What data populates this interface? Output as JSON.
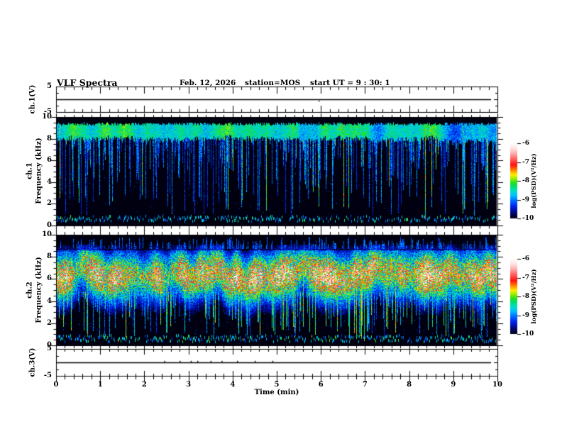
{
  "header": {
    "title": "VLF Spectra",
    "date": "Feb. 12, 2026",
    "station": "station=MOS",
    "start_ut": "start UT =  9 : 30: 1"
  },
  "x_axis": {
    "label": "Time (min)",
    "ticks": [
      "0",
      "1",
      "2",
      "3",
      "4",
      "5",
      "6",
      "7",
      "8",
      "9",
      "10"
    ],
    "min": 0,
    "max": 10,
    "minor_step": 0.2
  },
  "panels": {
    "ch1v": {
      "ylabel": "ch.1(V)",
      "yticks": [
        "5",
        "-5"
      ],
      "ymin": -5,
      "ymax": 5
    },
    "ch1spec": {
      "ylabel_channel": "ch.1",
      "ylabel_axis": "Frequency (kHz)",
      "yticks": [
        "10",
        "8",
        "6",
        "4",
        "2",
        "0"
      ]
    },
    "ch2spec": {
      "ylabel_channel": "ch.2",
      "ylabel_axis": "Frequency (kHz)",
      "yticks": [
        "10",
        "8",
        "6",
        "4",
        "2",
        "0"
      ]
    },
    "ch3v": {
      "ylabel": "ch.3(V)",
      "yticks": [
        "5",
        "-5"
      ],
      "ymin": -5,
      "ymax": 5
    }
  },
  "colorbar": {
    "label": "log(PSD)(V²/Hz)",
    "ticks": [
      "-6",
      "-7",
      "-8",
      "-9",
      "-10"
    ],
    "gradient_stops": [
      [
        0,
        "#ffffff"
      ],
      [
        0.07,
        "#ffe2e2"
      ],
      [
        0.14,
        "#ffaaaa"
      ],
      [
        0.22,
        "#ff5555"
      ],
      [
        0.29,
        "#ff1111"
      ],
      [
        0.33,
        "#ff5500"
      ],
      [
        0.38,
        "#ffaa00"
      ],
      [
        0.42,
        "#ffee00"
      ],
      [
        0.47,
        "#99ee00"
      ],
      [
        0.53,
        "#22dd22"
      ],
      [
        0.58,
        "#00dd77"
      ],
      [
        0.64,
        "#00ddcc"
      ],
      [
        0.7,
        "#00bbff"
      ],
      [
        0.77,
        "#0066ff"
      ],
      [
        0.84,
        "#0022ee"
      ],
      [
        0.9,
        "#000d99"
      ],
      [
        0.96,
        "#000344"
      ],
      [
        1,
        "#000011"
      ]
    ]
  },
  "chart_data": [
    {
      "type": "line",
      "panel": "ch.1(V)",
      "x_range": [
        0,
        10
      ],
      "y_range": [
        -5,
        5
      ],
      "series": [
        {
          "name": "ch.1 raw signal",
          "value": 0,
          "description": "flat trace at ~0 V from 0 to ~9.85 min with one tiny dot below the line near 5.95 min"
        }
      ],
      "blip_min": [
        5.95
      ]
    },
    {
      "type": "heatmap",
      "panel": "ch.1 spectrogram",
      "xlabel": "Time (min)",
      "ylabel": "Frequency (kHz)",
      "x_range": [
        0,
        10
      ],
      "y_range": [
        0,
        10
      ],
      "z_label": "log(PSD)(V²/Hz)",
      "z_range": [
        -10,
        -6
      ],
      "description": "Black background; dense band of impulsive broadband sferic activity between ~8.2 and 9.6 kHz (blue/cyan), many narrow vertical streaks extending down to 1–6 kHz, a few bright green streaks, sparse speckle below 4 kHz, and an intermittent narrow emission band near 0.3–0.9 kHz.",
      "render_params": {
        "seed": 1234,
        "streak_prob": 0.62,
        "green_prob": 0.08,
        "bottom_prob": 0.5,
        "band": [
          8.2,
          9.6
        ]
      }
    },
    {
      "type": "heatmap",
      "panel": "ch.2 spectrogram",
      "xlabel": "Time (min)",
      "ylabel": "Frequency (kHz)",
      "x_range": [
        0,
        10
      ],
      "y_range": [
        0,
        10
      ],
      "z_label": "log(PSD)(V²/Hz)",
      "z_range": [
        -10,
        -6
      ],
      "description": "Much more intense activity: broad band ~4.5–8.6 kHz of overlapping streaks with green/yellow cores and occasional orange/red hotspots near 6–7.5 kHz, frequent blue/green streaks descending to 1–4 kHz, sparse streaks above 8.8 kHz, intermittent band near 0.3–1 kHz.",
      "render_params": {
        "seed": 5678,
        "hot_prob": 0.3,
        "red_prob": 0.015,
        "tail_prob": 0.55,
        "bottom_prob": 0.55,
        "band": [
          4.8,
          8.6
        ],
        "center": 6.5
      }
    },
    {
      "type": "line",
      "panel": "ch.3(V)",
      "x_range": [
        0,
        10
      ],
      "y_range": [
        -5,
        5
      ],
      "series": [
        {
          "name": "ch.3 raw signal",
          "value": 0,
          "description": "flat trace at ~0 V with tiny positive noise blips between ~2.4 and 4.9 min"
        }
      ],
      "noise_blips_min": [
        2.45,
        2.8,
        3.05,
        3.2,
        3.5,
        3.75,
        4.1,
        4.5,
        4.9
      ]
    }
  ]
}
